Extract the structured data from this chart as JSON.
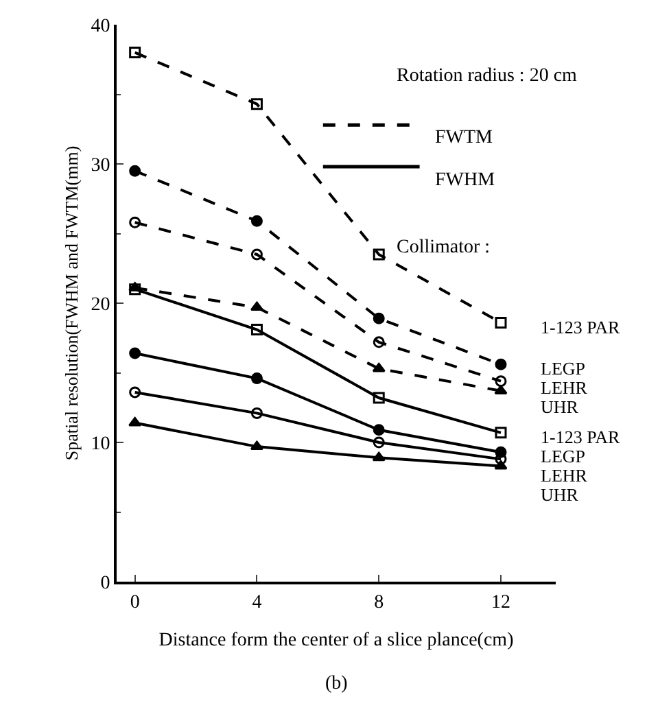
{
  "chart_data": {
    "type": "line",
    "xlabel": "Distance form the center of a slice plance(cm)",
    "ylabel": "Spatial resolution(FWHM and FWTM(mm)",
    "x": [
      0,
      4,
      8,
      12
    ],
    "xlim": [
      -0.6,
      13.8
    ],
    "xticks": [
      0,
      4,
      8,
      12
    ],
    "ylim": [
      0,
      40
    ],
    "yticks": [
      0,
      10,
      20,
      30,
      40
    ],
    "legend": false,
    "annotations": [
      "Rotation radius : 20 cm",
      "FWTM",
      "FWHM",
      "Collimator :",
      "(b)"
    ],
    "series": [
      {
        "name": "1-123 PAR",
        "color": "#000000",
        "line_style": "dashed",
        "marker": "square",
        "values": [
          38.0,
          34.3,
          23.5,
          18.6
        ]
      },
      {
        "name": "LEGP",
        "color": "#000000",
        "line_style": "dashed",
        "marker": "circle",
        "values": [
          29.5,
          25.9,
          18.9,
          15.6
        ]
      },
      {
        "name": "LEHR",
        "color": "#000000",
        "line_style": "dashed",
        "marker": "circle",
        "values": [
          25.8,
          23.5,
          17.2,
          14.4
        ]
      },
      {
        "name": "UHR",
        "color": "#000000",
        "line_style": "dashed",
        "marker": "triangle",
        "values": [
          21.1,
          19.7,
          15.3,
          13.7
        ]
      },
      {
        "name": "1-123 PAR",
        "color": "#000000",
        "line_style": "solid",
        "marker": "square",
        "values": [
          21.0,
          18.1,
          13.2,
          10.7
        ]
      },
      {
        "name": "LEGP",
        "color": "#000000",
        "line_style": "solid",
        "marker": "circle",
        "values": [
          16.4,
          14.6,
          10.9,
          9.3
        ]
      },
      {
        "name": "LEHR",
        "color": "#000000",
        "line_style": "solid",
        "marker": "circle",
        "values": [
          13.6,
          12.1,
          10.0,
          8.8
        ]
      },
      {
        "name": "UHR",
        "color": "#000000",
        "line_style": "solid",
        "marker": "triangle",
        "values": [
          11.4,
          9.7,
          8.9,
          8.3
        ]
      }
    ]
  }
}
